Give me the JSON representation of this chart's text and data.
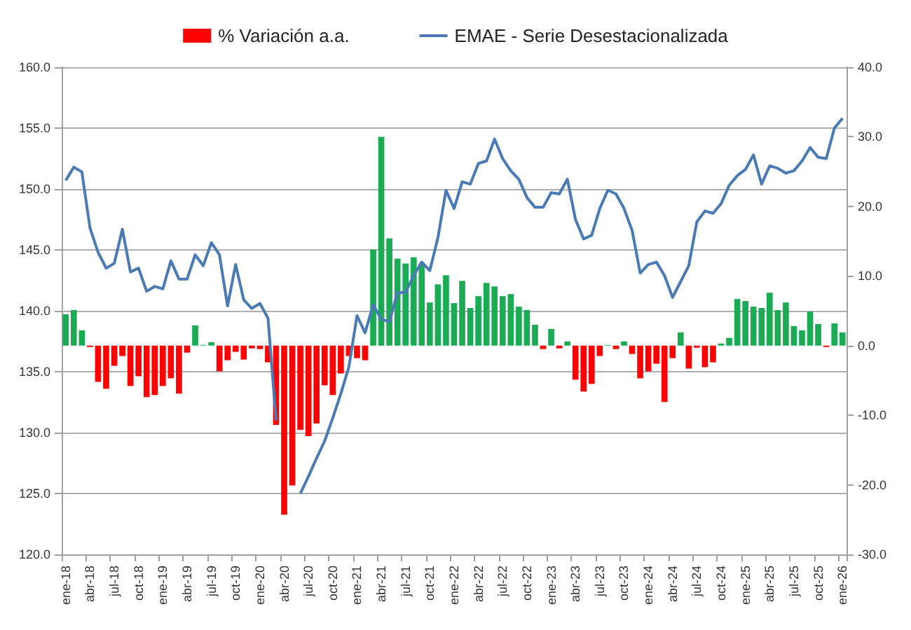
{
  "chart_data": {
    "type": "bar",
    "categories": [
      "ene-18",
      null,
      null,
      "abr-18",
      null,
      null,
      "jul-18",
      null,
      null,
      "oct-18",
      null,
      null,
      "ene-19",
      null,
      null,
      "abr-19",
      null,
      null,
      "jul-19",
      null,
      null,
      "oct-19",
      null,
      null,
      "ene-20",
      null,
      null,
      "abr-20",
      null,
      null,
      "jul-20",
      null,
      null,
      "oct-20",
      null,
      null,
      "ene-21",
      null,
      null,
      "abr-21",
      null,
      null,
      "jul-21",
      null,
      null,
      "oct-21",
      null,
      null,
      "ene-22",
      null,
      null,
      "abr-22",
      null,
      null,
      "jul-22",
      null,
      null,
      "oct-22",
      null,
      null,
      "ene-23",
      null,
      null,
      "abr-23",
      null,
      null,
      "jul-23",
      null,
      null,
      "oct-23",
      null,
      null,
      "ene-24",
      null,
      null,
      "abr-24",
      null,
      null,
      "jul-24",
      null,
      null,
      "oct-24",
      null,
      null,
      "ene-25",
      null,
      null,
      "abr-25",
      null,
      null,
      "jul-25",
      null,
      null,
      "oct-25",
      null,
      null,
      "ene-26"
    ],
    "series": [
      {
        "axis": "y2",
        "name": "% Variación a.a.",
        "color": "#ff0000",
        "values": [
          4.5,
          5.1,
          2.2,
          -0.2,
          -5.2,
          -6.2,
          -2.9,
          -1.5,
          -5.8,
          -4.4,
          -7.4,
          -7.1,
          -5.8,
          -4.7,
          -6.9,
          -1.0,
          2.9,
          0.1,
          0.5,
          -3.7,
          -2.1,
          -0.9,
          -2.0,
          -0.4,
          -0.5,
          -2.4,
          -11.4,
          -24.3,
          -20.1,
          -12.1,
          -13.0,
          -11.2,
          -5.7,
          -7.1,
          -4.0,
          -1.5,
          -1.8,
          -2.1,
          13.8,
          30.0,
          15.4,
          12.5,
          11.8,
          12.7,
          11.8,
          6.2,
          8.8,
          10.1,
          6.1,
          9.3,
          5.4,
          7.1,
          9.0,
          8.5,
          7.1,
          7.4,
          5.6,
          5.1,
          3.0,
          -0.5,
          2.4,
          -0.4,
          0.6,
          -4.9,
          -6.6,
          -5.5,
          -1.5,
          0.1,
          -0.5,
          0.6,
          -1.2,
          -4.7,
          -3.7,
          -2.6,
          -8.1,
          -1.8,
          1.9,
          -3.3,
          -0.3,
          -3.1,
          -2.4,
          0.3,
          1.1,
          6.7,
          6.4,
          5.6,
          5.4,
          7.6,
          5.1,
          6.2,
          2.8,
          2.2,
          4.9,
          3.1,
          -0.2,
          3.2,
          1.9
        ],
        "colors": [
          "#1aab54",
          "#1aab54",
          "#1aab54",
          "#ff0000",
          "#ff0000",
          "#ff0000",
          "#ff0000",
          "#ff0000",
          "#ff0000",
          "#ff0000",
          "#ff0000",
          "#ff0000",
          "#ff0000",
          "#ff0000",
          "#ff0000",
          "#ff0000",
          "#1aab54",
          "#1aab54",
          "#1aab54",
          "#ff0000",
          "#ff0000",
          "#ff0000",
          "#ff0000",
          "#ff0000",
          "#ff0000",
          "#ff0000",
          "#ff0000",
          "#ff0000",
          "#ff0000",
          "#ff0000",
          "#ff0000",
          "#ff0000",
          "#ff0000",
          "#ff0000",
          "#ff0000",
          "#ff0000",
          "#ff0000",
          "#ff0000",
          "#1aab54",
          "#1aab54",
          "#1aab54",
          "#1aab54",
          "#1aab54",
          "#1aab54",
          "#1aab54",
          "#1aab54",
          "#1aab54",
          "#1aab54",
          "#1aab54",
          "#1aab54",
          "#1aab54",
          "#1aab54",
          "#1aab54",
          "#1aab54",
          "#1aab54",
          "#1aab54",
          "#1aab54",
          "#1aab54",
          "#1aab54",
          "#ff0000",
          "#1aab54",
          "#ff0000",
          "#1aab54",
          "#ff0000",
          "#ff0000",
          "#ff0000",
          "#ff0000",
          "#1aab54",
          "#ff0000",
          "#1aab54",
          "#ff0000",
          "#ff0000",
          "#ff0000",
          "#ff0000",
          "#ff0000",
          "#ff0000",
          "#1aab54",
          "#ff0000",
          "#ff0000",
          "#ff0000",
          "#ff0000",
          "#1aab54",
          "#1aab54",
          "#1aab54",
          "#1aab54",
          "#1aab54",
          "#1aab54",
          "#1aab54",
          "#1aab54",
          "#1aab54",
          "#1aab54",
          "#1aab54",
          "#1aab54",
          "#1aab54",
          "#ff0000",
          "#1aab54",
          "#1aab54"
        ]
      },
      {
        "type": "line",
        "name": "EMAE - Serie Desestacionalizada",
        "color": "#4a7ab5",
        "values": [
          150.7,
          151.8,
          151.4,
          146.8,
          144.8,
          143.5,
          143.9,
          146.7,
          143.2,
          143.5,
          141.6,
          142.0,
          141.8,
          144.1,
          142.6,
          142.6,
          144.6,
          143.7,
          145.6,
          144.6,
          140.4,
          143.8,
          140.9,
          140.2,
          140.6,
          139.4,
          131.0,
          null,
          null,
          125.0,
          126.4,
          127.9,
          129.3,
          131.2,
          133.2,
          135.4,
          139.6,
          138.2,
          140.5,
          139.3,
          139.1,
          141.5,
          141.5,
          142.9,
          144.0,
          143.3,
          146.0,
          149.9,
          148.4,
          150.6,
          150.4,
          152.1,
          152.3,
          154.1,
          152.5,
          151.5,
          150.8,
          149.3,
          148.5,
          148.5,
          149.7,
          149.6,
          150.8,
          147.5,
          145.9,
          146.2,
          148.4,
          149.9,
          149.6,
          148.4,
          146.6,
          143.1,
          143.8,
          144.0,
          142.9,
          141.1,
          142.4,
          143.7,
          147.3,
          148.2,
          148.0,
          148.8,
          150.3,
          151.1,
          151.6,
          152.8,
          150.4,
          151.9,
          151.7,
          151.3,
          151.5,
          152.3,
          153.4,
          152.6,
          152.5,
          155.0,
          155.8
        ]
      }
    ],
    "ylim": [
      120,
      160
    ],
    "yticks": [
      {
        "value": 120,
        "label": "120.0"
      },
      {
        "value": 125,
        "label": "125.0"
      },
      {
        "value": 130,
        "label": "130.0"
      },
      {
        "value": 135,
        "label": "135.0"
      },
      {
        "value": 140,
        "label": "140.0"
      },
      {
        "value": 145,
        "label": "145.0"
      },
      {
        "value": 150,
        "label": "150.0"
      },
      {
        "value": 155,
        "label": "155.0"
      },
      {
        "value": 160,
        "label": "160.0"
      }
    ],
    "y2lim": [
      -30,
      40
    ],
    "y2ticks": [
      {
        "value": -30,
        "label": "-30.0"
      },
      {
        "value": -20,
        "label": "-20.0"
      },
      {
        "value": -10,
        "label": "-10.0"
      },
      {
        "value": 0,
        "label": "0.0"
      },
      {
        "value": 10,
        "label": "10.0"
      },
      {
        "value": 20,
        "label": "20.0"
      },
      {
        "value": 30,
        "label": "30.0"
      },
      {
        "value": 40,
        "label": "40.0"
      }
    ],
    "grid": "y",
    "legend": "top"
  }
}
